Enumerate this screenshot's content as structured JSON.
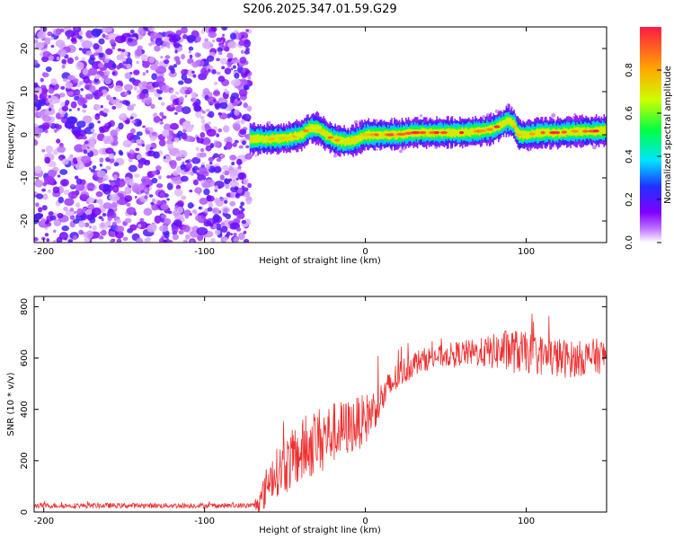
{
  "chart_data": [
    {
      "type": "heatmap",
      "title": "S206.2025.347.01.59.G29",
      "xlabel": "Height of straight line (km)",
      "ylabel": "Frequency (Hz)",
      "xlim": [
        -206,
        150
      ],
      "ylim": [
        -25,
        25
      ],
      "x_ticks": [
        -200,
        -100,
        0,
        100
      ],
      "y_ticks": [
        -20,
        -10,
        0,
        10,
        20
      ],
      "colorbar": {
        "label": "Normalized spectral amplitude",
        "range": [
          0,
          1
        ],
        "ticks": [
          "0.0",
          "0.2",
          "0.4",
          "0.6",
          "0.8"
        ],
        "colors": [
          "#ffffff",
          "#c27bff",
          "#7f00ff",
          "#2030ff",
          "#00e5ff",
          "#00ff44",
          "#ccff00",
          "#ffaa00",
          "#ff1a44"
        ]
      },
      "noise_region_x": [
        -206,
        -72
      ],
      "signal_ridge": {
        "x": [
          -72,
          -60,
          -50,
          -40,
          -35,
          -30,
          -25,
          -20,
          -15,
          -10,
          -5,
          0,
          10,
          20,
          30,
          40,
          50,
          60,
          70,
          75,
          80,
          85,
          88,
          92,
          95,
          100,
          110,
          120,
          130,
          140,
          150
        ],
        "freq": [
          -1,
          -1,
          -0.8,
          0,
          1.5,
          1.5,
          0,
          -1,
          -1.5,
          -1.5,
          -1,
          0,
          0,
          0,
          0.5,
          0.5,
          0.5,
          0.5,
          0.8,
          1.0,
          1.5,
          2.5,
          3.3,
          2.5,
          0,
          0,
          0.5,
          0.5,
          0.8,
          0.8,
          1.0
        ],
        "amp": [
          0.7,
          0.8,
          0.7,
          0.75,
          0.8,
          0.75,
          0.85,
          0.8,
          0.75,
          0.8,
          0.7,
          0.85,
          0.9,
          0.85,
          0.9,
          0.95,
          0.9,
          0.95,
          0.95,
          0.9,
          0.95,
          0.9,
          0.85,
          0.9,
          0.85,
          0.9,
          0.9,
          0.95,
          0.9,
          0.95,
          0.9
        ]
      }
    },
    {
      "type": "line",
      "xlabel": "Height of straight line (km)",
      "ylabel": "SNR (10 * v/v)",
      "xlim": [
        -206,
        150
      ],
      "ylim": [
        0,
        840
      ],
      "x_ticks": [
        -200,
        -100,
        0,
        100
      ],
      "y_ticks": [
        0,
        200,
        400,
        600,
        800
      ],
      "line_color": "#f03030",
      "series": [
        {
          "name": "SNR",
          "x": [
            -206,
            -150,
            -100,
            -70,
            -65,
            -60,
            -50,
            -40,
            -30,
            -20,
            -10,
            0,
            10,
            20,
            30,
            40,
            50,
            60,
            70,
            80,
            90,
            100,
            110,
            120,
            130,
            140,
            150
          ],
          "trend": [
            25,
            25,
            25,
            25,
            40,
            130,
            180,
            230,
            280,
            310,
            330,
            360,
            440,
            530,
            580,
            600,
            610,
            620,
            620,
            625,
            630,
            620,
            610,
            600,
            595,
            605,
            610
          ],
          "spread": [
            10,
            10,
            10,
            10,
            60,
            80,
            110,
            130,
            130,
            120,
            110,
            100,
            70,
            60,
            50,
            45,
            45,
            50,
            55,
            70,
            90,
            80,
            80,
            80,
            70,
            70,
            70
          ]
        }
      ]
    }
  ]
}
